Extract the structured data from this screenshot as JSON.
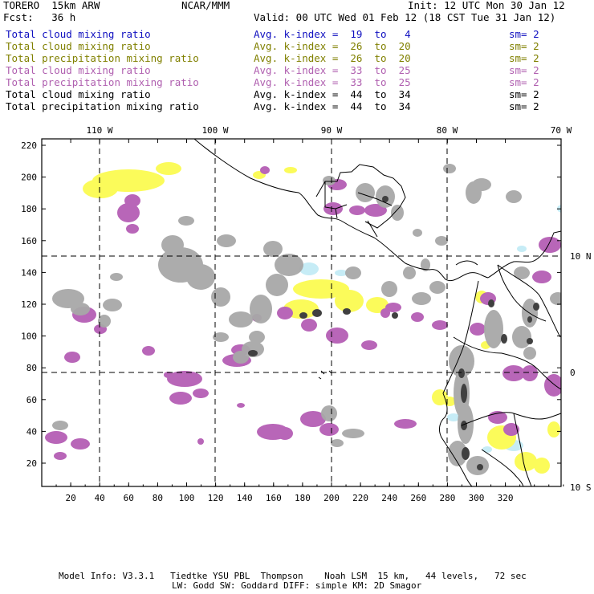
{
  "header": {
    "model": "TORERO  15km ARW",
    "center": "NCAR/MMM",
    "init": "Init: 12 UTC Mon 30 Jan 12",
    "fcst": "Fcst:   36 h",
    "valid": "Valid: 00 UTC Wed 01 Feb 12 (18 CST Tue 31 Jan 12)"
  },
  "legend": [
    {
      "field": "Total cloud mixing ratio",
      "kindex": "Avg. k-index =  19  to   4",
      "sm": "sm= 2",
      "color": "#1010c0"
    },
    {
      "field": "Total cloud mixing ratio",
      "kindex": "Avg. k-index =  26  to  20",
      "sm": "sm= 2",
      "color": "#808000"
    },
    {
      "field": "Total precipitation mixing ratio",
      "kindex": "Avg. k-index =  26  to  20",
      "sm": "sm= 2",
      "color": "#808000"
    },
    {
      "field": "Total cloud mixing ratio",
      "kindex": "Avg. k-index =  33  to  25",
      "sm": "sm= 2",
      "color": "#b060b0"
    },
    {
      "field": "Total precipitation mixing ratio",
      "kindex": "Avg. k-index =  33  to  25",
      "sm": "sm= 2",
      "color": "#b060b0"
    },
    {
      "field": "Total cloud mixing ratio",
      "kindex": "Avg. k-index =  44  to  34",
      "sm": "sm= 2",
      "color": "#000000"
    },
    {
      "field": "Total precipitation mixing ratio",
      "kindex": "Avg. k-index =  44  to  34",
      "sm": "sm= 2",
      "color": "#000000"
    }
  ],
  "map": {
    "top_lon_labels": [
      "110 W",
      "100 W",
      "90 W",
      "80 W",
      "70 W"
    ],
    "right_lat_labels": [
      "10 N",
      "0",
      "10 S"
    ],
    "x_ticks": [
      "20",
      "40",
      "60",
      "80",
      "100",
      "120",
      "140",
      "160",
      "180",
      "200",
      "220",
      "240",
      "260",
      "280",
      "300",
      "320"
    ],
    "y_ticks": [
      "220",
      "200",
      "180",
      "160",
      "140",
      "120",
      "100",
      "80",
      "60",
      "40",
      "20"
    ],
    "colors": {
      "light_blue": "#c6ecf6",
      "yellow": "#fbfb5a",
      "purple": "#b866b8",
      "gray": "#a8a8a8",
      "dark": "#404040"
    }
  },
  "footer": {
    "line1": "Model Info: V3.3.1   Tiedtke YSU PBL  Thompson    Noah LSM  15 km,   44 levels,   72 sec",
    "line2": "LW: Godd SW: Goddard DIFF: simple KM: 2D Smagor"
  }
}
